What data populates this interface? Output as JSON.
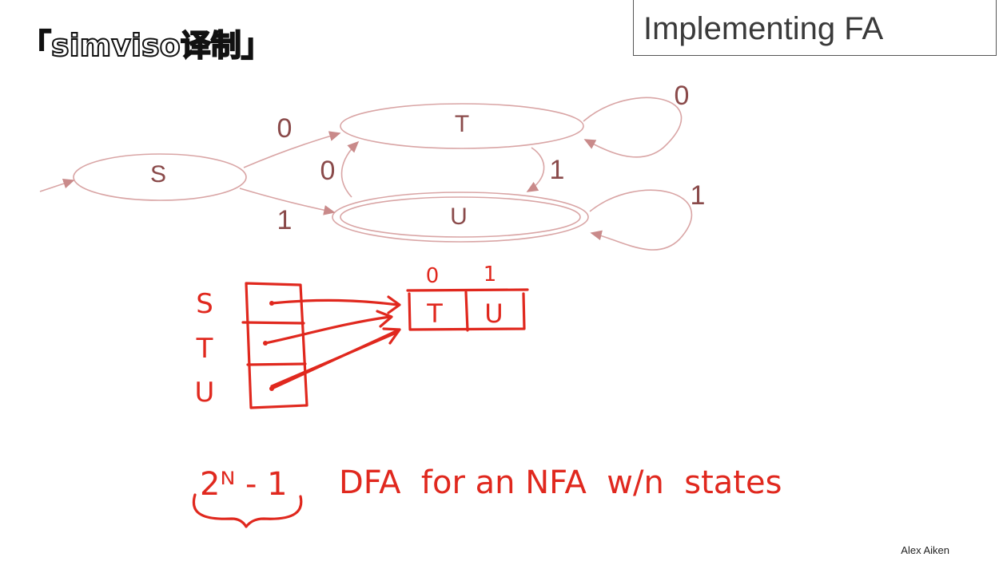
{
  "watermark": "「simviso译制」",
  "title": "Implementing FA",
  "author": "Alex Aiken",
  "nfa": {
    "states": [
      {
        "id": "S",
        "label": "S",
        "start": true,
        "accepting": false
      },
      {
        "id": "T",
        "label": "T",
        "start": false,
        "accepting": false
      },
      {
        "id": "U",
        "label": "U",
        "start": false,
        "accepting": true
      }
    ],
    "transitions": [
      {
        "from": "S",
        "to": "T",
        "symbol": "0"
      },
      {
        "from": "S",
        "to": "U",
        "symbol": "1"
      },
      {
        "from": "T",
        "to": "T",
        "symbol": "0"
      },
      {
        "from": "T",
        "to": "U",
        "symbol": "1"
      },
      {
        "from": "U",
        "to": "T",
        "symbol": "0"
      },
      {
        "from": "U",
        "to": "U",
        "symbol": "1"
      }
    ]
  },
  "handwriting": {
    "row_labels": [
      "S",
      "T",
      "U"
    ],
    "column_headers": [
      "0",
      "1"
    ],
    "shared_row_cells": [
      "T",
      "U"
    ],
    "note_formula": "2ᴺ - 1",
    "note_text": "DFA  for an NFA  w/n  states"
  },
  "colors": {
    "ink": "#e0281e",
    "diagram": "#8a4a4a",
    "edge": "#d9a5a5"
  }
}
